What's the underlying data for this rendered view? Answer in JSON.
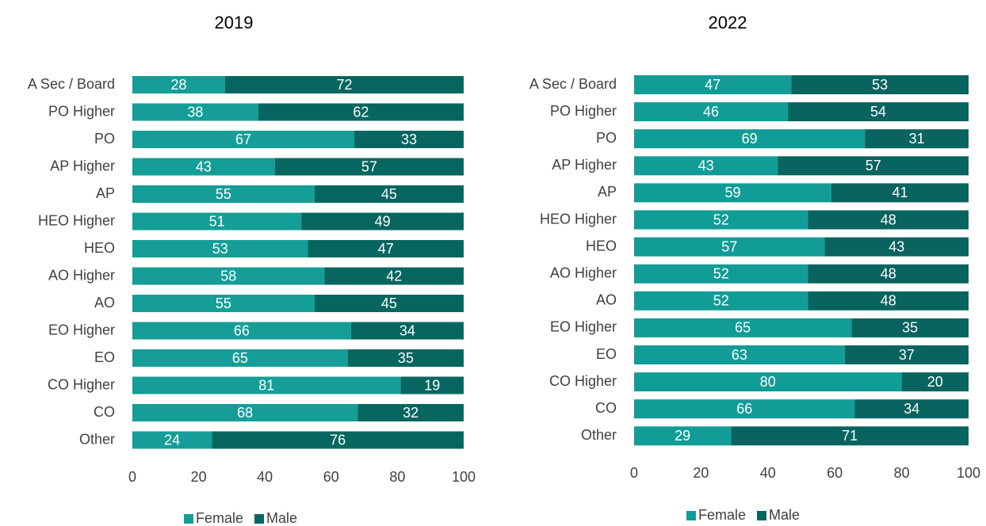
{
  "chart_data": [
    {
      "type": "bar",
      "stacked": true,
      "orientation": "horizontal",
      "title": "2019",
      "categories": [
        "A Sec / Board",
        "PO Higher",
        "PO",
        "AP Higher",
        "AP",
        "HEO Higher",
        "HEO",
        "AO Higher",
        "AO",
        "EO Higher",
        "EO",
        "CO Higher",
        "CO",
        "Other"
      ],
      "series": [
        {
          "name": "Female",
          "color": "#149e97",
          "values": [
            28,
            38,
            67,
            43,
            55,
            51,
            53,
            58,
            55,
            66,
            65,
            81,
            68,
            24
          ]
        },
        {
          "name": "Male",
          "color": "#07665f",
          "values": [
            72,
            62,
            33,
            57,
            45,
            49,
            47,
            42,
            45,
            34,
            35,
            19,
            32,
            76
          ]
        }
      ],
      "xlim": [
        0,
        100
      ],
      "xticks": [
        0,
        20,
        40,
        60,
        80,
        100
      ],
      "legend": "bottom"
    },
    {
      "type": "bar",
      "stacked": true,
      "orientation": "horizontal",
      "title": "2022",
      "categories": [
        "A Sec / Board",
        "PO Higher",
        "PO",
        "AP Higher",
        "AP",
        "HEO Higher",
        "HEO",
        "AO Higher",
        "AO",
        "EO Higher",
        "EO",
        "CO Higher",
        "CO",
        "Other"
      ],
      "series": [
        {
          "name": "Female",
          "color": "#129c97",
          "values": [
            47,
            46,
            69,
            43,
            59,
            52,
            57,
            52,
            52,
            65,
            63,
            80,
            66,
            29
          ]
        },
        {
          "name": "Male",
          "color": "#09635f",
          "values": [
            53,
            54,
            31,
            57,
            41,
            48,
            43,
            48,
            48,
            35,
            37,
            20,
            34,
            71
          ]
        }
      ],
      "xlim": [
        0,
        100
      ],
      "xticks": [
        0,
        20,
        40,
        60,
        80,
        100
      ],
      "legend": "bottom"
    }
  ]
}
